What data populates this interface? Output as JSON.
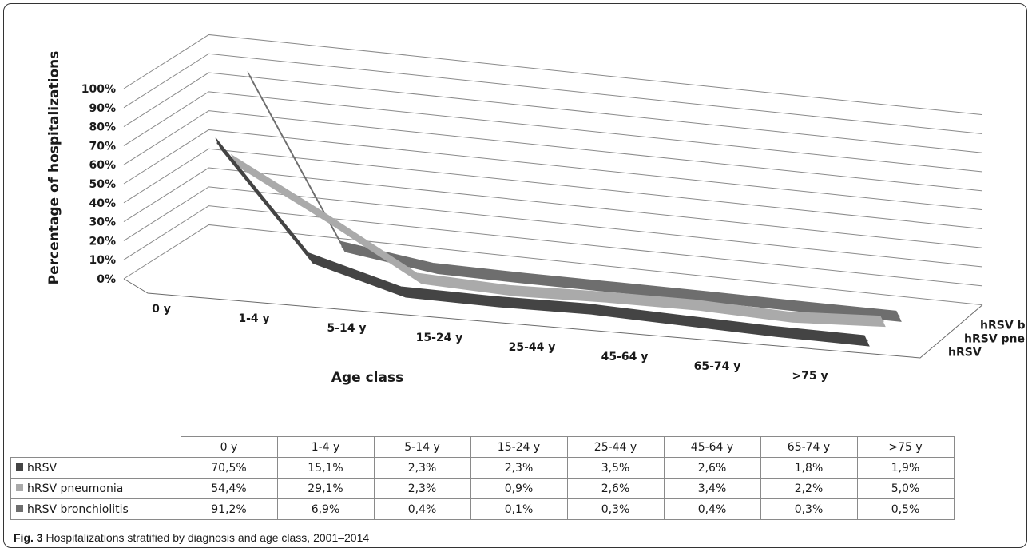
{
  "chart_data": {
    "type": "line",
    "subtype": "3d-line",
    "categories": [
      "0 y",
      "1-4 y",
      "5-14 y",
      "15-24 y",
      "25-44 y",
      "45-64 y",
      "65-74 y",
      ">75 y"
    ],
    "series": [
      {
        "name": "hRSV",
        "values": [
          70.5,
          15.1,
          2.3,
          2.3,
          3.5,
          2.6,
          1.8,
          1.9
        ],
        "labels": [
          "70,5%",
          "15,1%",
          "2,3%",
          "2,3%",
          "3,5%",
          "2,6%",
          "1,8%",
          "1,9%"
        ],
        "color": "#444444"
      },
      {
        "name": "hRSV pneumonia",
        "values": [
          54.4,
          29.1,
          2.3,
          0.9,
          2.6,
          3.4,
          2.2,
          5.0
        ],
        "labels": [
          "54,4%",
          "29,1%",
          "2,3%",
          "0,9%",
          "2,6%",
          "3,4%",
          "2,2%",
          "5,0%"
        ],
        "color": "#aaaaaa"
      },
      {
        "name": "hRSV bronchiolitis",
        "values": [
          91.2,
          6.9,
          0.4,
          0.1,
          0.3,
          0.4,
          0.3,
          0.5
        ],
        "labels": [
          "91,2%",
          "6,9%",
          "0,4%",
          "0,1%",
          "0,3%",
          "0,4%",
          "0,3%",
          "0,5%"
        ],
        "color": "#6e6e6e"
      }
    ],
    "ylabel": "Percentage of hospitalizations",
    "xlabel": "Age class",
    "ylim": [
      0,
      100
    ],
    "yticks": [
      "0%",
      "10%",
      "20%",
      "30%",
      "40%",
      "50%",
      "60%",
      "70%",
      "80%",
      "90%",
      "100%"
    ],
    "grid": true,
    "legend": "series labels at right of depth axis; data table below"
  },
  "caption": {
    "label": "Fig. 3",
    "text": "Hospitalizations stratified by diagnosis and age class, 2001–2014"
  }
}
